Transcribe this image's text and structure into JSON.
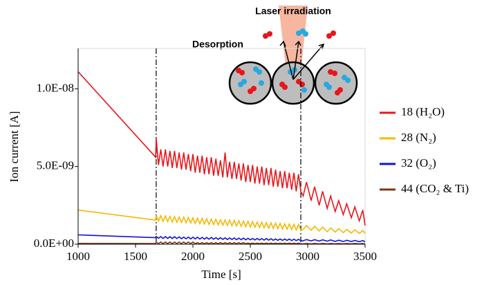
{
  "chart_data": {
    "type": "line",
    "y_label": "Ion current [A]",
    "x_label": "Time [s]",
    "annotations": [
      "Laser irradiation",
      "Desorption"
    ],
    "vlines": [
      1680,
      2940
    ],
    "xlim": [
      1000,
      3500
    ],
    "xticks": [
      1000,
      1500,
      2000,
      2500,
      3000,
      3500
    ],
    "ylim": [
      0,
      1.26e-08
    ],
    "yticks": [
      {
        "value": 0,
        "label": "0.0E+00"
      },
      {
        "value": 5e-09,
        "label": "5.0E-09"
      },
      {
        "value": 1e-08,
        "label": "1.0E-08"
      }
    ],
    "x": [
      1000,
      1675,
      1680,
      1700,
      1720,
      1740,
      1760,
      1780,
      1800,
      1820,
      1840,
      1860,
      1880,
      1900,
      1920,
      1940,
      1960,
      1980,
      2000,
      2020,
      2040,
      2060,
      2080,
      2100,
      2120,
      2140,
      2160,
      2180,
      2200,
      2220,
      2240,
      2260,
      2280,
      2300,
      2320,
      2340,
      2360,
      2380,
      2400,
      2420,
      2440,
      2460,
      2480,
      2500,
      2520,
      2540,
      2560,
      2580,
      2600,
      2620,
      2640,
      2660,
      2680,
      2700,
      2720,
      2740,
      2760,
      2780,
      2800,
      2820,
      2840,
      2860,
      2880,
      2900,
      2920,
      2940,
      2960,
      2990,
      3030,
      3060,
      3100,
      3130,
      3170,
      3200,
      3240,
      3270,
      3310,
      3340,
      3380,
      3410,
      3450,
      3480,
      3500
    ],
    "series": [
      {
        "name": "18 (H₂O)",
        "color": "#e8161b",
        "values": [
          1.11e-08,
          5.6e-09,
          6.8e-09,
          5.1e-09,
          6.1e-09,
          5e-09,
          6.1e-09,
          5e-09,
          6e-09,
          4.9e-09,
          6e-09,
          4.9e-09,
          5.9e-09,
          4.8e-09,
          5.9e-09,
          4.8e-09,
          5.8e-09,
          4.7e-09,
          5.8e-09,
          4.6e-09,
          5.7e-09,
          4.6e-09,
          5.7e-09,
          4.5e-09,
          5.6e-09,
          4.5e-09,
          5.6e-09,
          4.4e-09,
          5.5e-09,
          4.4e-09,
          5.4e-09,
          4.3e-09,
          5.9e-09,
          4.3e-09,
          5.3e-09,
          4.2e-09,
          5.3e-09,
          4.2e-09,
          5.2e-09,
          4.1e-09,
          5.2e-09,
          4e-09,
          5.1e-09,
          4e-09,
          5.1e-09,
          3.9e-09,
          5e-09,
          3.9e-09,
          5e-09,
          3.8e-09,
          4.9e-09,
          3.8e-09,
          4.9e-09,
          3.7e-09,
          4.8e-09,
          3.7e-09,
          4.7e-09,
          3.6e-09,
          4.7e-09,
          3.6e-09,
          4.6e-09,
          3.5e-09,
          4.6e-09,
          3.4e-09,
          4.5e-09,
          3.4e-09,
          3.1e-09,
          4e-09,
          2.8e-09,
          3.7e-09,
          2.5e-09,
          3.4e-09,
          2.3e-09,
          3.1e-09,
          2.1e-09,
          2.8e-09,
          1.9e-09,
          2.6e-09,
          1.7e-09,
          2.4e-09,
          1.5e-09,
          2.2e-09,
          1.2e-09
        ]
      },
      {
        "name": "28 (N₂)",
        "color": "#f5b800",
        "values": [
          2.2e-09,
          1.55e-09,
          1.85e-09,
          1.49e-09,
          1.83e-09,
          1.47e-09,
          1.81e-09,
          1.45e-09,
          1.79e-09,
          1.43e-09,
          1.77e-09,
          1.41e-09,
          1.75e-09,
          1.4e-09,
          1.74e-09,
          1.38e-09,
          1.72e-09,
          1.36e-09,
          1.7e-09,
          1.34e-09,
          1.68e-09,
          1.32e-09,
          1.66e-09,
          1.3e-09,
          1.64e-09,
          1.28e-09,
          1.62e-09,
          1.26e-09,
          1.6e-09,
          1.24e-09,
          1.58e-09,
          1.22e-09,
          1.56e-09,
          1.21e-09,
          1.55e-09,
          1.19e-09,
          1.53e-09,
          1.17e-09,
          1.51e-09,
          1.15e-09,
          1.49e-09,
          1.13e-09,
          1.47e-09,
          1.11e-09,
          1.45e-09,
          1.09e-09,
          1.43e-09,
          1.07e-09,
          1.41e-09,
          1.05e-09,
          1.39e-09,
          1.03e-09,
          1.37e-09,
          1.02e-09,
          1.36e-09,
          1e-09,
          1.34e-09,
          9.8e-10,
          1.32e-09,
          9.6e-10,
          1.3e-09,
          9.4e-10,
          1.28e-09,
          9.2e-10,
          1.26e-09,
          9e-10,
          9.5e-10,
          1.2e-09,
          9e-10,
          1.15e-09,
          8.5e-10,
          1.1e-09,
          8e-10,
          1.05e-09,
          7.8e-10,
          1e-09,
          7.5e-10,
          9.5e-10,
          7.2e-10,
          9.2e-10,
          7e-10,
          8.8e-10,
          6.8e-10
        ]
      },
      {
        "name": "32 (O₂)",
        "color": "#1010d8",
        "values": [
          6e-10,
          4.2e-10,
          5e-10,
          3.8e-10,
          4.9e-10,
          3.7e-10,
          4.9e-10,
          3.7e-10,
          4.8e-10,
          3.6e-10,
          4.8e-10,
          3.6e-10,
          4.7e-10,
          3.5e-10,
          4.6e-10,
          3.5e-10,
          4.6e-10,
          3.4e-10,
          4.5e-10,
          3.4e-10,
          4.5e-10,
          3.3e-10,
          4.4e-10,
          3.3e-10,
          4.3e-10,
          3.2e-10,
          4.3e-10,
          3.2e-10,
          4.2e-10,
          3.1e-10,
          4.2e-10,
          3.1e-10,
          4.1e-10,
          3e-10,
          4e-10,
          3e-10,
          4e-10,
          2.9e-10,
          3.9e-10,
          2.9e-10,
          3.9e-10,
          2.8e-10,
          3.8e-10,
          2.8e-10,
          3.7e-10,
          2.7e-10,
          3.7e-10,
          2.7e-10,
          3.6e-10,
          2.6e-10,
          3.6e-10,
          2.6e-10,
          3.5e-10,
          2.5e-10,
          3.4e-10,
          2.5e-10,
          3.4e-10,
          2.4e-10,
          3.3e-10,
          2.4e-10,
          3.3e-10,
          2.3e-10,
          3.2e-10,
          2.3e-10,
          3.1e-10,
          2.2e-10,
          2.2e-10,
          3e-10,
          2.1e-10,
          2.9e-10,
          2e-10,
          2.8e-10,
          1.9e-10,
          2.7e-10,
          1.8e-10,
          2.6e-10,
          1.7e-10,
          2.5e-10,
          1.7e-10,
          2.4e-10,
          1.6e-10,
          2.3e-10,
          1.5e-10
        ]
      },
      {
        "name": "44 (CO₂ & Ti)",
        "color": "#7a3a10",
        "values": [
          5e-11,
          4e-11,
          1.4e-10,
          3e-11,
          1.4e-10,
          3e-11,
          1.4e-10,
          3e-11,
          1.4e-10,
          3e-11,
          1.4e-10,
          3e-11,
          1.4e-10,
          3e-11,
          1.4e-10,
          3e-11,
          1.4e-10,
          3e-11,
          1.4e-10,
          3e-11,
          1e-10,
          3e-11,
          1e-10,
          3e-11,
          1e-10,
          3e-11,
          1e-10,
          3e-11,
          1e-10,
          3e-11,
          1e-10,
          3e-11,
          1e-10,
          3e-11,
          1e-10,
          3e-11,
          1e-10,
          3e-11,
          1e-10,
          3e-11,
          1e-10,
          3e-11,
          7e-11,
          3e-11,
          7e-11,
          3e-11,
          7e-11,
          3e-11,
          7e-11,
          3e-11,
          7e-11,
          3e-11,
          7e-11,
          3e-11,
          7e-11,
          3e-11,
          7e-11,
          3e-11,
          7e-11,
          3e-11,
          7e-11,
          3e-11,
          7e-11,
          3e-11,
          7e-11,
          3e-11,
          2e-11,
          5e-11,
          2e-11,
          5e-11,
          2e-11,
          5e-11,
          2e-11,
          5e-11,
          2e-11,
          5e-11,
          2e-11,
          5e-11,
          2e-11,
          5e-11,
          2e-11,
          5e-11,
          2e-11
        ]
      }
    ]
  }
}
